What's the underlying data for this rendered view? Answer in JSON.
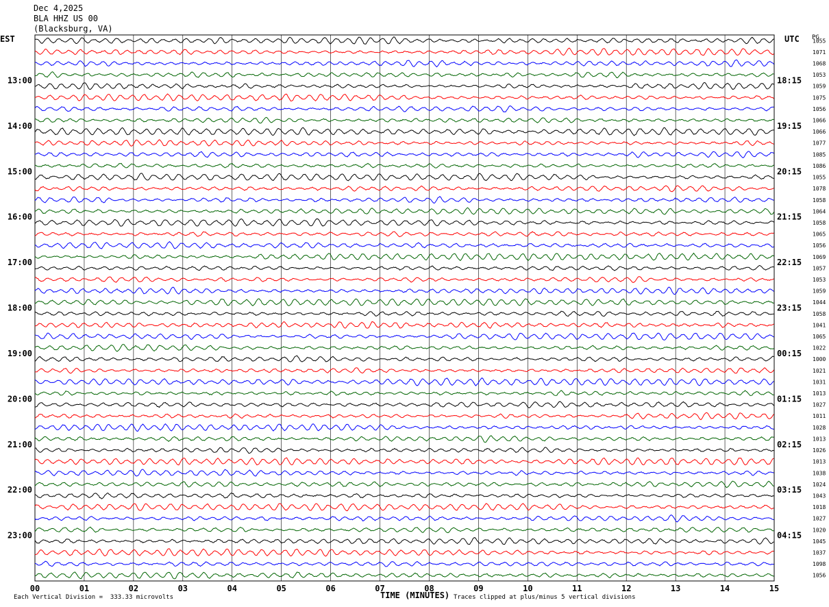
{
  "header": {
    "date": "Dec 4,2025",
    "station": "BLA HHZ US 00",
    "location": "(Blacksburg, VA)"
  },
  "left_axis_title": "EST",
  "right_axis_title": "UTC",
  "far_right_title": "PG",
  "footer": {
    "scale_note": "Each Vertical Division =  333.33 microvolts",
    "xlabel": "TIME (MINUTES)",
    "clip_note": "Traces clipped at plus/minus 5 vertical divisions"
  },
  "colors": [
    "#000000",
    "#ff0000",
    "#0000ff",
    "#006400"
  ],
  "chart_data": {
    "type": "line",
    "title": "",
    "xlabel": "TIME (MINUTES)",
    "ylabel": "",
    "xlim": [
      0,
      15
    ],
    "x_ticks": [
      "00",
      "01",
      "02",
      "03",
      "04",
      "05",
      "06",
      "07",
      "08",
      "09",
      "10",
      "11",
      "12",
      "13",
      "14",
      "15"
    ],
    "row_count": 48,
    "minutes_per_row": 15,
    "grid": true,
    "left_hour_labels": [
      "13:00",
      "14:00",
      "15:00",
      "16:00",
      "17:00",
      "18:00",
      "19:00",
      "20:00",
      "21:00",
      "22:00",
      "23:00"
    ],
    "right_hour_labels": [
      "18:15",
      "19:15",
      "20:15",
      "21:15",
      "22:15",
      "23:15",
      "00:15",
      "01:15",
      "02:15",
      "03:15",
      "04:15"
    ],
    "right_row_values": [
      "1055",
      "1071",
      "1068",
      "1053",
      "1059",
      "1075",
      "1056",
      "1066",
      "1066",
      "1077",
      "1085",
      "1086",
      "1055",
      "1078",
      "1058",
      "1064",
      "1058",
      "1065",
      "1056",
      "1069",
      "1057",
      "1053",
      "1059",
      "1044",
      "1058",
      "1041",
      "1065",
      "1022",
      "1000",
      "1021",
      "1031",
      "1013",
      "1027",
      "1011",
      "1028",
      "1013",
      "1026",
      "1013",
      "1038",
      "1024",
      "1043",
      "1018",
      "1027",
      "1020",
      "1045",
      "1037",
      "1098",
      "1056"
    ]
  }
}
